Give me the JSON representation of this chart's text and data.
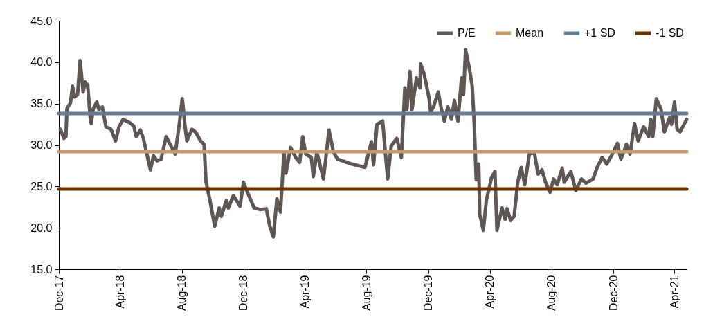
{
  "chart_data": {
    "type": "line",
    "legend": "top right",
    "grid": false,
    "xlim": [
      "2017-12-01",
      "2021-04-25"
    ],
    "xticks": [
      {
        "value": "2017-12-01",
        "label": "Dec-17"
      },
      {
        "value": "2018-04-01",
        "label": "Apr-18"
      },
      {
        "value": "2018-08-01",
        "label": "Aug-18"
      },
      {
        "value": "2018-12-01",
        "label": "Dec-18"
      },
      {
        "value": "2019-04-01",
        "label": "Apr-19"
      },
      {
        "value": "2019-08-01",
        "label": "Aug-19"
      },
      {
        "value": "2019-12-01",
        "label": "Dec-19"
      },
      {
        "value": "2020-04-01",
        "label": "Apr-20"
      },
      {
        "value": "2020-08-01",
        "label": "Aug-20"
      },
      {
        "value": "2020-12-01",
        "label": "Dec-20"
      },
      {
        "value": "2021-04-01",
        "label": "Apr-21"
      }
    ],
    "ylim": [
      15,
      45
    ],
    "yticks": [
      {
        "value": 15,
        "label": "15.0"
      },
      {
        "value": 20,
        "label": "20.0"
      },
      {
        "value": 25,
        "label": "25.0"
      },
      {
        "value": 30,
        "label": "30.0"
      },
      {
        "value": 35,
        "label": "35.0"
      },
      {
        "value": 40,
        "label": "40.0"
      },
      {
        "value": 45,
        "label": "45.0"
      }
    ],
    "series": [
      {
        "name": "P/E",
        "color": "#5f5753",
        "x": [
          "2017-12-04",
          "2017-12-11",
          "2017-12-15",
          "2017-12-17",
          "2017-12-24",
          "2017-12-28",
          "2018-01-01",
          "2018-01-07",
          "2018-01-12",
          "2018-01-18",
          "2018-01-22",
          "2018-01-27",
          "2018-02-01",
          "2018-02-03",
          "2018-02-07",
          "2018-02-14",
          "2018-02-18",
          "2018-02-25",
          "2018-03-04",
          "2018-03-14",
          "2018-03-23",
          "2018-03-30",
          "2018-04-07",
          "2018-04-20",
          "2018-04-28",
          "2018-05-03",
          "2018-05-11",
          "2018-05-17",
          "2018-05-24",
          "2018-05-31",
          "2018-06-06",
          "2018-06-13",
          "2018-06-21",
          "2018-07-01",
          "2018-07-08",
          "2018-07-19",
          "2018-07-27",
          "2018-08-02",
          "2018-08-07",
          "2018-08-11",
          "2018-08-21",
          "2018-08-29",
          "2018-09-07",
          "2018-09-14",
          "2018-09-18",
          "2018-09-25",
          "2018-10-05",
          "2018-10-14",
          "2018-10-18",
          "2018-10-28",
          "2018-11-01",
          "2018-11-11",
          "2018-11-24",
          "2018-12-01",
          "2018-12-08",
          "2018-12-22",
          "2019-01-04",
          "2019-01-15",
          "2019-01-22",
          "2019-01-29",
          "2019-02-05",
          "2019-02-12",
          "2019-02-19",
          "2019-02-23",
          "2019-03-04",
          "2019-03-14",
          "2019-03-22",
          "2019-03-28",
          "2019-04-03",
          "2019-04-14",
          "2019-04-18",
          "2019-04-25",
          "2019-05-08",
          "2019-05-19",
          "2019-05-28",
          "2019-06-05",
          "2019-07-03",
          "2019-07-29",
          "2019-08-11",
          "2019-08-15",
          "2019-08-22",
          "2019-09-02",
          "2019-09-12",
          "2019-09-19",
          "2019-09-30",
          "2019-10-09",
          "2019-10-16",
          "2019-10-20",
          "2019-10-26",
          "2019-10-30",
          "2019-11-08",
          "2019-11-15",
          "2019-11-16",
          "2019-11-23",
          "2019-12-03",
          "2019-12-06",
          "2019-12-12",
          "2019-12-21",
          "2019-12-27",
          "2020-01-02",
          "2020-01-09",
          "2020-01-16",
          "2020-01-22",
          "2020-01-29",
          "2020-02-05",
          "2020-02-09",
          "2020-02-13",
          "2020-02-20",
          "2020-02-26",
          "2020-03-01",
          "2020-03-05",
          "2020-03-10",
          "2020-03-12",
          "2020-03-19",
          "2020-03-25",
          "2020-04-04",
          "2020-04-11",
          "2020-04-15",
          "2020-04-25",
          "2020-05-01",
          "2020-05-05",
          "2020-05-12",
          "2020-05-19",
          "2020-05-26",
          "2020-06-02",
          "2020-06-09",
          "2020-06-18",
          "2020-06-28",
          "2020-07-05",
          "2020-07-13",
          "2020-07-20",
          "2020-07-29",
          "2020-08-05",
          "2020-08-12",
          "2020-08-22",
          "2020-08-26",
          "2020-09-08",
          "2020-09-18",
          "2020-09-29",
          "2020-10-08",
          "2020-10-22",
          "2020-10-30",
          "2020-11-09",
          "2020-11-18",
          "2020-11-29",
          "2020-12-09",
          "2020-12-16",
          "2020-12-27",
          "2021-01-03",
          "2021-01-12",
          "2021-01-19",
          "2021-01-30",
          "2021-02-09",
          "2021-02-13",
          "2021-02-17",
          "2021-02-24",
          "2021-03-05",
          "2021-03-12",
          "2021-03-22",
          "2021-03-26",
          "2021-04-01",
          "2021-04-06",
          "2021-04-12",
          "2021-04-25"
        ],
        "values": [
          31.9,
          30.8,
          31.0,
          34.4,
          35.1,
          37.1,
          35.8,
          36.1,
          40.2,
          36.4,
          37.6,
          37.2,
          33.3,
          32.6,
          34.4,
          35.2,
          34.3,
          34.6,
          32.2,
          31.9,
          30.5,
          32.2,
          33.1,
          32.7,
          32.3,
          31.0,
          31.8,
          30.8,
          28.9,
          27.0,
          28.7,
          28.1,
          28.3,
          31.0,
          30.2,
          28.9,
          32.5,
          35.6,
          32.5,
          30.5,
          31.9,
          31.5,
          30.5,
          30.1,
          25.5,
          23.5,
          20.2,
          22.4,
          21.4,
          23.3,
          22.4,
          23.9,
          22.6,
          25.5,
          24.4,
          22.4,
          22.2,
          22.3,
          20.2,
          18.9,
          23.5,
          21.9,
          29.1,
          26.6,
          29.7,
          28.5,
          27.9,
          31.0,
          28.9,
          28.5,
          26.2,
          29.1,
          25.9,
          31.8,
          29.1,
          28.3,
          27.7,
          27.3,
          30.4,
          27.6,
          32.5,
          32.9,
          25.9,
          29.9,
          30.8,
          28.5,
          36.9,
          34.3,
          38.9,
          34.3,
          38.1,
          36.9,
          39.8,
          38.6,
          35.6,
          33.9,
          34.7,
          36.4,
          34.4,
          32.9,
          34.6,
          33.1,
          35.4,
          32.9,
          38.1,
          36.1,
          41.5,
          39.4,
          37.2,
          32.7,
          25.8,
          27.7,
          21.6,
          19.7,
          23.3,
          26.0,
          26.8,
          19.7,
          22.4,
          21.0,
          22.3,
          20.9,
          21.4,
          25.5,
          27.3,
          25.2,
          28.9,
          29.1,
          26.5,
          27.0,
          25.5,
          24.3,
          25.9,
          25.2,
          27.2,
          25.5,
          26.8,
          24.5,
          25.9,
          25.4,
          25.9,
          27.3,
          28.5,
          27.7,
          28.9,
          30.2,
          28.3,
          30.1,
          28.9,
          32.6,
          30.5,
          32.2,
          31.0,
          33.1,
          31.0,
          35.6,
          34.4,
          31.6,
          33.3,
          32.5,
          35.2,
          31.9,
          31.6,
          33.1
        ]
      },
      {
        "name": "Mean",
        "color": "#c8996a",
        "x": [
          "2017-12-01",
          "2021-04-25"
        ],
        "values": [
          29.2,
          29.2
        ]
      },
      {
        "name": "+1 SD",
        "color": "#687a93",
        "x": [
          "2017-12-01",
          "2021-04-25"
        ],
        "values": [
          33.8,
          33.8
        ]
      },
      {
        "name": "-1 SD",
        "color": "#663300",
        "x": [
          "2017-12-01",
          "2021-04-25"
        ],
        "values": [
          24.7,
          24.7
        ]
      }
    ]
  }
}
